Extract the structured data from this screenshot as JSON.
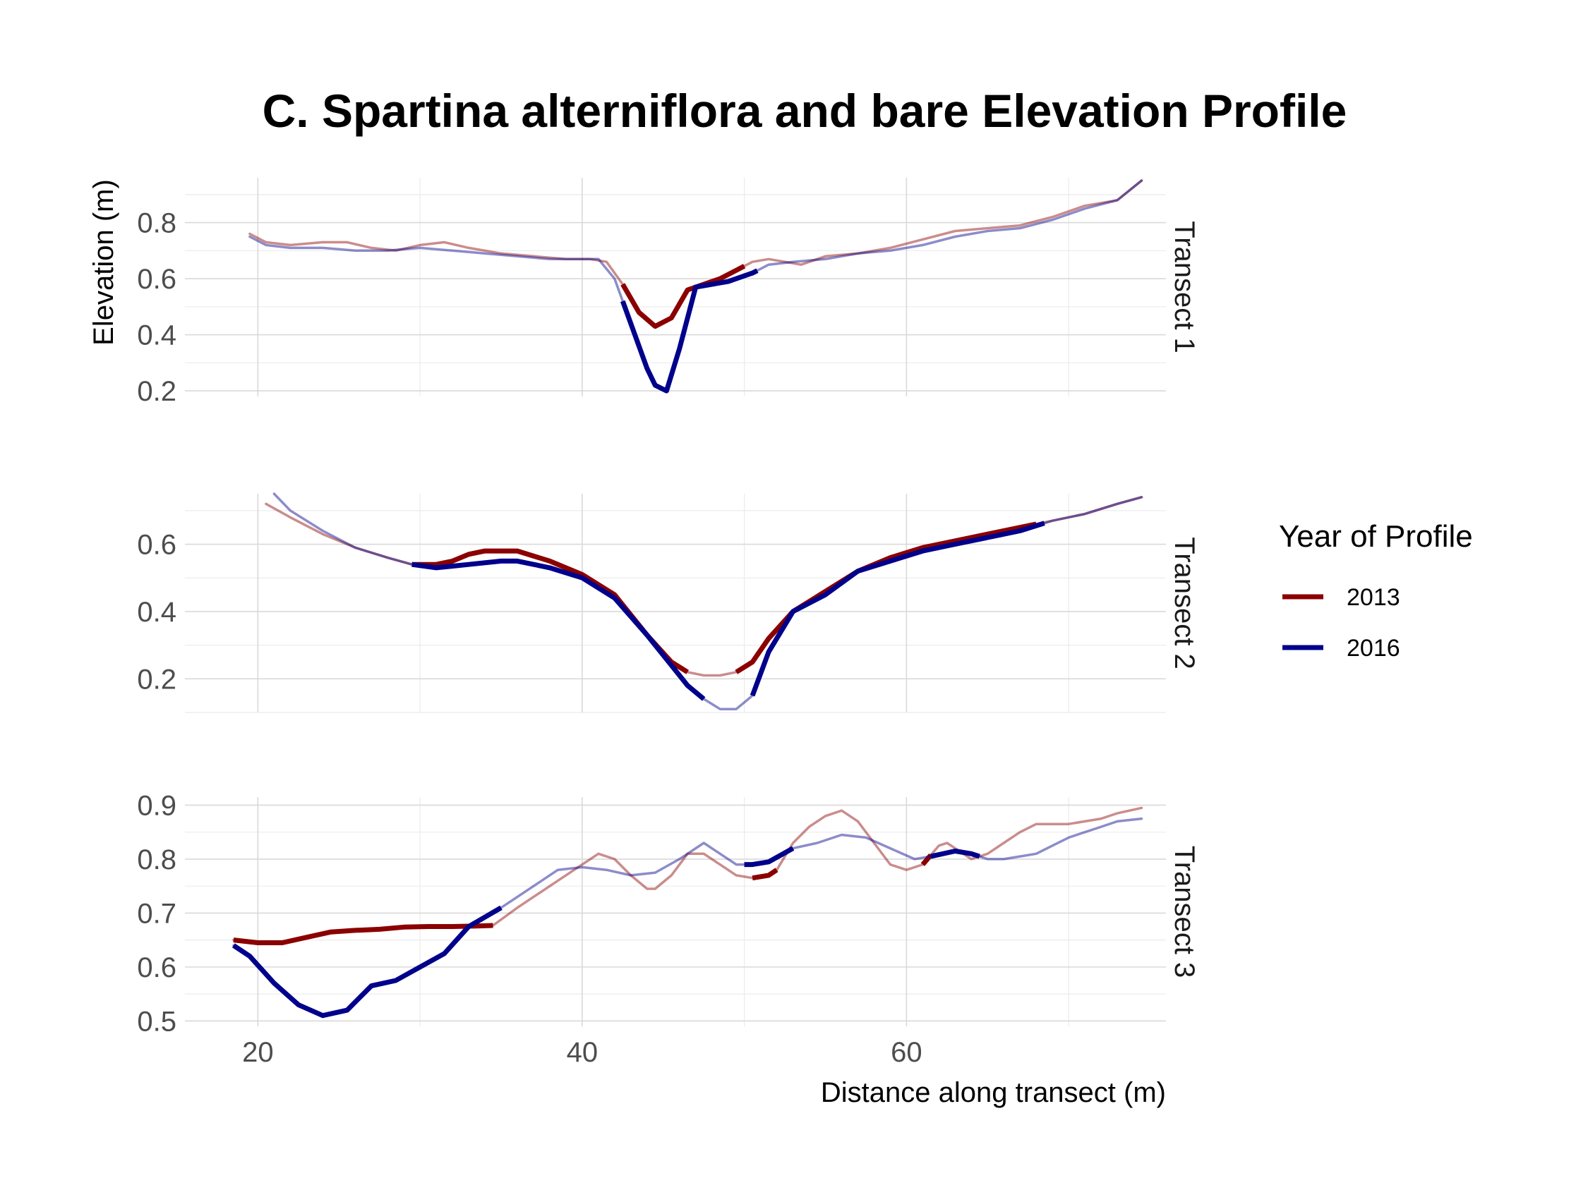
{
  "chart_data": {
    "type": "line",
    "title": "C. Spartina alterniflora and bare Elevation Profile",
    "xlabel": "Distance along transect (m)",
    "ylabel": "Elevation (m)",
    "xlim": [
      15.5,
      76
    ],
    "x_ticks": [
      20,
      40,
      60
    ],
    "grid": true,
    "legend": {
      "title": "Year of Profile",
      "position": "right",
      "items": [
        {
          "label": "2013",
          "color": "#8b0000"
        },
        {
          "label": "2016",
          "color": "#00008b"
        }
      ]
    },
    "colors": {
      "2013": "#8b0000",
      "2016": "#00008b"
    },
    "panels": [
      {
        "strip": "Transect 1",
        "ylim": [
          0.18,
          0.96
        ],
        "y_ticks": [
          0.2,
          0.4,
          0.6,
          0.8
        ],
        "series": [
          {
            "name": "2013",
            "x": [
              19.5,
              20.5,
              22,
              24,
              25.5,
              27,
              28.5,
              30,
              31.5,
              33,
              35,
              37,
              39,
              40.5,
              41.5,
              42.5,
              43.5,
              44.5,
              45.5,
              46.5,
              47.5,
              48.5,
              49.5,
              50.5,
              51.5,
              52.5,
              53.5,
              55,
              57,
              59,
              61,
              63,
              65,
              67,
              69,
              71,
              73,
              74.5
            ],
            "y": [
              0.76,
              0.73,
              0.72,
              0.73,
              0.73,
              0.71,
              0.7,
              0.72,
              0.73,
              0.71,
              0.69,
              0.68,
              0.67,
              0.67,
              0.66,
              0.58,
              0.48,
              0.43,
              0.46,
              0.56,
              0.58,
              0.6,
              0.63,
              0.66,
              0.67,
              0.66,
              0.65,
              0.68,
              0.69,
              0.71,
              0.74,
              0.77,
              0.78,
              0.79,
              0.82,
              0.86,
              0.88,
              0.95
            ],
            "highlight_ranges": [
              [
                42.5,
                50
              ]
            ]
          },
          {
            "name": "2016",
            "x": [
              19.5,
              20.5,
              22,
              24,
              26,
              28,
              30,
              32,
              34,
              36,
              38,
              39.5,
              41,
              42,
              43,
              44,
              44.5,
              45.2,
              46,
              47,
              48,
              49,
              50,
              50.5,
              51.5,
              53,
              55,
              57,
              59,
              61,
              63,
              65,
              67,
              69,
              71,
              73,
              74.5
            ],
            "y": [
              0.75,
              0.72,
              0.71,
              0.71,
              0.7,
              0.7,
              0.71,
              0.7,
              0.69,
              0.68,
              0.67,
              0.67,
              0.67,
              0.6,
              0.44,
              0.28,
              0.22,
              0.2,
              0.35,
              0.57,
              0.58,
              0.59,
              0.61,
              0.62,
              0.65,
              0.66,
              0.67,
              0.69,
              0.7,
              0.72,
              0.75,
              0.77,
              0.78,
              0.81,
              0.85,
              0.88,
              0.95
            ],
            "highlight_ranges": [
              [
                42.5,
                50.8
              ]
            ]
          }
        ]
      },
      {
        "strip": "Transect 2",
        "ylim": [
          0.1,
          0.75
        ],
        "y_ticks": [
          0.2,
          0.4,
          0.6
        ],
        "series": [
          {
            "name": "2013",
            "x": [
              20.5,
              22,
              24,
              26,
              28,
              29.5,
              31,
              32,
              33,
              34,
              35,
              36,
              38,
              40,
              42,
              44,
              45.5,
              46.5,
              47.5,
              48.5,
              49.5,
              50.5,
              51.5,
              53,
              55,
              57,
              59,
              61,
              63,
              65,
              67,
              69,
              71,
              73,
              74.5
            ],
            "y": [
              0.72,
              0.68,
              0.63,
              0.59,
              0.56,
              0.54,
              0.54,
              0.55,
              0.57,
              0.58,
              0.58,
              0.58,
              0.55,
              0.51,
              0.45,
              0.33,
              0.25,
              0.22,
              0.21,
              0.21,
              0.22,
              0.25,
              0.32,
              0.4,
              0.46,
              0.52,
              0.56,
              0.59,
              0.61,
              0.63,
              0.65,
              0.67,
              0.69,
              0.72,
              0.74
            ],
            "highlight_ranges": [
              [
                29.5,
                46.5
              ],
              [
                49.5,
                68
              ]
            ]
          },
          {
            "name": "2016",
            "x": [
              21,
              22,
              24,
              26,
              28,
              29.5,
              31,
              33,
              35,
              36,
              38,
              40,
              42,
              44,
              45.5,
              46.5,
              47.5,
              48.5,
              49.5,
              50.5,
              51.5,
              53,
              55,
              57,
              59,
              61,
              63,
              65,
              67,
              69,
              71,
              73,
              74.5
            ],
            "y": [
              0.75,
              0.7,
              0.64,
              0.59,
              0.56,
              0.54,
              0.53,
              0.54,
              0.55,
              0.55,
              0.53,
              0.5,
              0.44,
              0.33,
              0.24,
              0.18,
              0.14,
              0.11,
              0.11,
              0.15,
              0.28,
              0.4,
              0.45,
              0.52,
              0.55,
              0.58,
              0.6,
              0.62,
              0.64,
              0.67,
              0.69,
              0.72,
              0.74
            ],
            "highlight_ranges": [
              [
                29.5,
                47.5
              ],
              [
                50.5,
                68.5
              ]
            ]
          }
        ]
      },
      {
        "strip": "Transect 3",
        "ylim": [
          0.49,
          0.915
        ],
        "y_ticks": [
          0.5,
          0.6,
          0.7,
          0.8,
          0.9
        ],
        "series": [
          {
            "name": "2013",
            "x": [
              18.5,
              20,
              21.5,
              23,
              24.5,
              26,
              27.5,
              29,
              30.5,
              32,
              33.5,
              34.5,
              36,
              38,
              40,
              41,
              42,
              43,
              44,
              44.5,
              45.5,
              46.5,
              47.5,
              48.5,
              49.5,
              50.5,
              51.5,
              52,
              53,
              54,
              55,
              56,
              57,
              58,
              59,
              60,
              61,
              62,
              62.5,
              63,
              64,
              65,
              66,
              67,
              68,
              69,
              70,
              71,
              72,
              73,
              74.5
            ],
            "y": [
              0.65,
              0.645,
              0.645,
              0.655,
              0.665,
              0.668,
              0.67,
              0.674,
              0.675,
              0.675,
              0.676,
              0.677,
              0.71,
              0.75,
              0.79,
              0.81,
              0.8,
              0.77,
              0.745,
              0.745,
              0.77,
              0.81,
              0.81,
              0.79,
              0.77,
              0.765,
              0.77,
              0.78,
              0.83,
              0.86,
              0.88,
              0.89,
              0.87,
              0.83,
              0.79,
              0.78,
              0.79,
              0.825,
              0.83,
              0.82,
              0.8,
              0.81,
              0.83,
              0.85,
              0.865,
              0.865,
              0.865,
              0.87,
              0.875,
              0.885,
              0.895
            ],
            "highlight_ranges": [
              [
                18.5,
                34.5
              ],
              [
                50.5,
                52
              ],
              [
                61,
                61.5
              ]
            ]
          },
          {
            "name": "2016",
            "x": [
              18.5,
              19.5,
              21,
              22.5,
              24,
              25.5,
              27,
              28.5,
              30,
              31.5,
              33,
              35,
              37,
              38.5,
              40,
              41.5,
              43,
              44.5,
              46,
              47.5,
              48.5,
              49.5,
              50.5,
              51.5,
              53,
              54.5,
              56,
              57.5,
              59,
              60.5,
              61.5,
              63,
              64,
              65,
              66,
              67,
              68,
              69,
              70,
              71,
              72,
              73,
              74.5
            ],
            "y": [
              0.64,
              0.62,
              0.57,
              0.53,
              0.51,
              0.52,
              0.565,
              0.575,
              0.6,
              0.625,
              0.675,
              0.71,
              0.75,
              0.78,
              0.785,
              0.78,
              0.77,
              0.775,
              0.8,
              0.83,
              0.81,
              0.79,
              0.79,
              0.795,
              0.82,
              0.83,
              0.845,
              0.84,
              0.82,
              0.8,
              0.805,
              0.815,
              0.81,
              0.8,
              0.8,
              0.805,
              0.81,
              0.825,
              0.84,
              0.85,
              0.86,
              0.87,
              0.875
            ],
            "highlight_ranges": [
              [
                18.5,
                35
              ],
              [
                50,
                53
              ],
              [
                61.5,
                64.5
              ]
            ]
          }
        ]
      }
    ]
  }
}
